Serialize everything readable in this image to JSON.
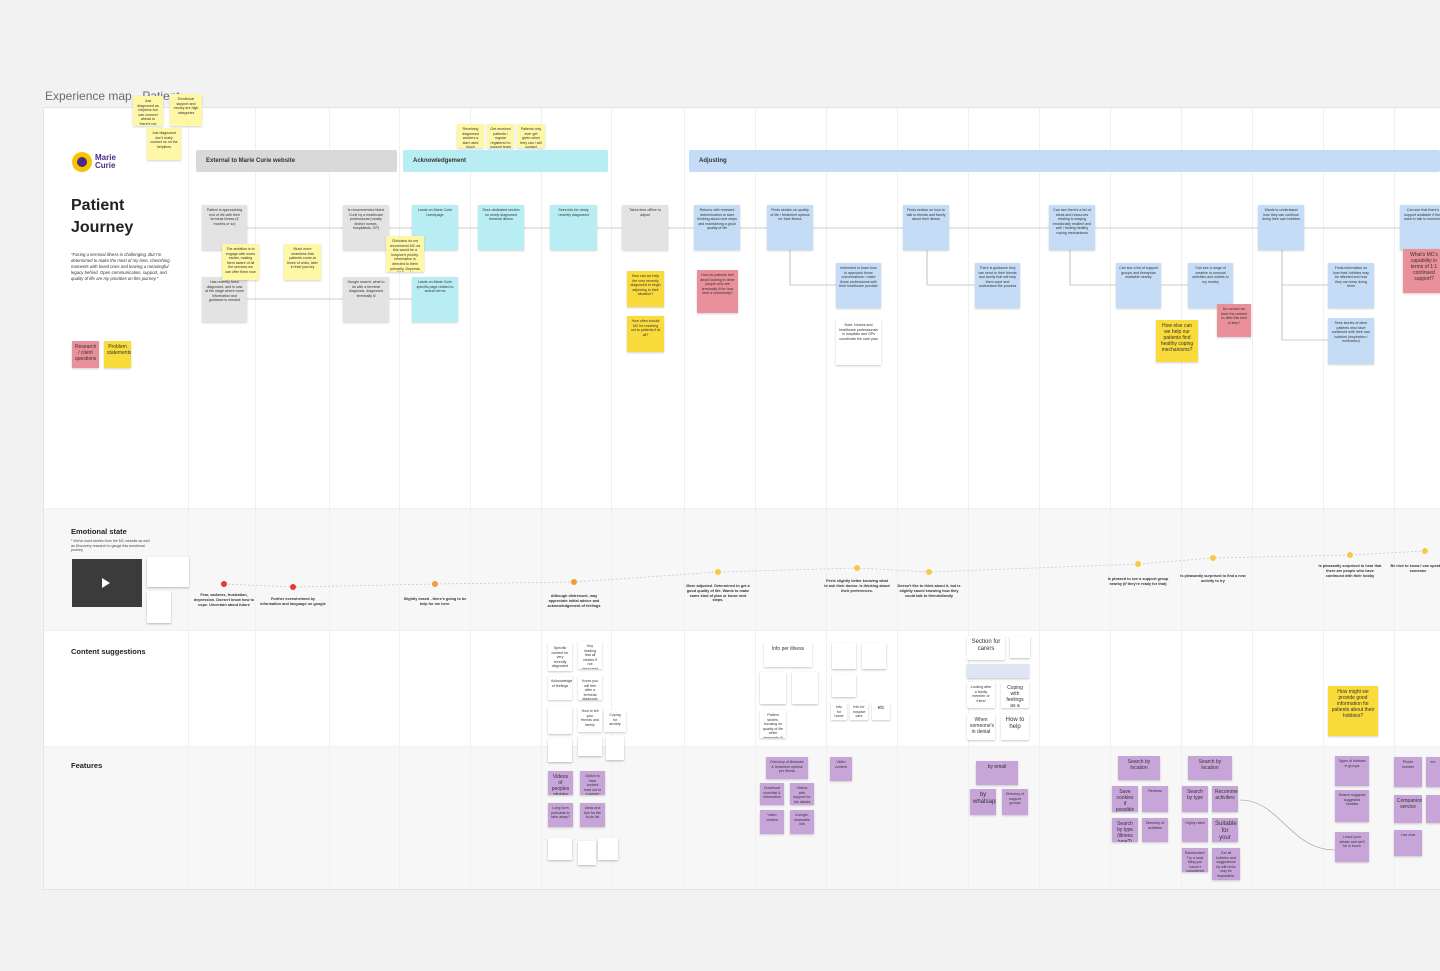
{
  "frame_title": "Experience map - Patient",
  "logo_text": "Marie Curie",
  "journey_title": "Patient Journey",
  "journey_quote": "\"Facing a terminal illness is challenging. But I'm determined to make the most of my time, cherishing moments with loved ones and leaving a meaningful legacy behind. Open communication, support, and quality of life are my priorities on this journey.\"",
  "legend": {
    "research": "Research / client questions",
    "problem": "Problem statements"
  },
  "phases": [
    "External to Marie Curie website",
    "Acknowledgement",
    "Adjusting"
  ],
  "sections": {
    "emotional": "Emotional state",
    "emotional_sub": "* We've used stories from the MC website as well as Discovery research to gauge this emotional journey",
    "content": "Content suggestions",
    "features": "Features"
  },
  "steps": [
    "Patient is approaching end of life with their terminal illness (6 months or so)",
    "Has recently been diagnosed, and is now at the stage where more information and guidance is needed",
    "Is recommended Marie Curie by a healthcare professional (mostly district nurses, hospitalists, GP)",
    "Google search: what to do with a terminal diagnosis, diagnosed terminally ill",
    "Lands on Marie Curie homepage",
    "Lands on Marie Curie specific page related to search terms",
    "Sees dedicated section on newly diagnosed terminal illness",
    "Sees info for newly recently diagnosed",
    "Takes time offline to adjust",
    "Returns with renewed determination to start thinking about next steps and maintaining a good quality of life",
    "Finds section on quality of life / treatment options for their illness",
    "Finds section on how to talk to friends and family about their illness",
    "Can see there's a list of ideas and resources relating to staying emotionally resilient and well / finding healthy coping mechanisms",
    "Wants to understand how they can continue doing their own hobbies",
    "Can see that there's support available if they want to talk to someone"
  ],
  "sub_steps": [
    "Interested to learn how to approach those conversations / make those professional with their healthcare provider",
    "Note: Nurses and healthcare professionals in hospitals and GPs coordinate the care plan",
    "There is guidance they can send to their friends and family that will help them cope and understand the process",
    "Can see a list of support groups and therapists available nearby",
    "Can see a range of creative or unusual activities and outlets in my nearby",
    "Finds information on how their hobbies may be affected and how they can keep doing them",
    "Sees stories of other patients who have continued with their own hobbies (inspiration / motivation)"
  ],
  "ideas": [
    "The ambition is to engage with users earlier, making them aware of all the services we can offer them now",
    "Much more seamless that patients come at times of crisis, later in their journey",
    "Clinicians do not recommend MC as this would be a hospice's priority. Information is directed to them primarily. Depends on GDS and how involved in the messaging",
    "How can we help the very recently diagnosed to begin adjusting to their situation?",
    "How often should MC be reaching out to patients if at all?",
    "How else can we help our patients find healthy coping mechanisms?",
    "How might we provide good information for patients about their hobbies?",
    "Receiving diagnosed workers a start used touch",
    "Get received patients / regular registered to support team",
    "Patients only ever get given when they can / will contact"
  ],
  "top_notes": [
    "Just diagnosed as helpless but can connect ahead to there's not want touch",
    "Emotional support and money are high categories",
    "Just diagnosed don't really contact us on the helplines"
  ],
  "research_notes": [
    "How do patients feel about looking in other people who are terminally ill for how best a community?",
    "What's MC's capability in terms of 1:1 continued support?",
    "Do we/can we have the content to offer this kind of step?"
  ],
  "emotions": [
    "Fear, sadness, frustration, depression. Doesn't know how to cope. Uncertain about future",
    "Further overwhelmed by information and language on google",
    "Slightly eased - there's going to be help for me here.",
    "Although distressed, may appreciate initial advice and acknowledgement of feelings",
    "More adjusted. Determined to get a good quality of life. Wants to make some kind of plan or know next steps.",
    "Feels slightly better knowing what to ask their doctor. Is thinking about their preferences.",
    "Doesn't like to think about it, but is slightly eased knowing how they could talk to friends/family",
    "Is pleased to see a support group nearby (if they're ready for that)",
    "Is pleasantly surprised to find a new activity to try",
    "Is pleasantly surprised to hear that there are people who have continued with their hobby",
    "Be nice to know I can speak to someone"
  ],
  "content_notes": [
    "Specific content for very recently diagnosed",
    "Key reading that all relates if not diagnosed and how they can feel at this time",
    "Acknowledgement of feelings",
    "Know you will feel after a terminal diagnosis",
    "How to tell your friends and family",
    "Coping for anxiety",
    "Info per illness",
    "Patient stories, focusing on quality of life while terminally ill",
    "Info for home care",
    "Info for hospice care",
    "etc",
    "Section for carers",
    "Looking after a family member or friend",
    "Coping with feelings as a carer",
    "When someone's in denial",
    "How to help"
  ],
  "features": [
    "Videos of peoples stories",
    "Option to have content read out to a screen user",
    "Long form podcasts to take away?",
    "Ideas and tips for the to-do list",
    "Directory of illnesses & treatment options per illness",
    "Video content",
    "Download checklist & information",
    "Videos with support for the diaries",
    "Video content",
    "A single, shareable link",
    "by email",
    "by whatsapp",
    "Directory of support groups",
    "Search by location",
    "Save cookies if possible",
    "Reviews",
    "Search by type (illness type?)",
    "Directory of activities",
    "Search by location",
    "Search by type",
    "Recommended activities",
    "Highly rated",
    "Suitable for your illness type",
    "Randomiser! Try a local thing you haven't considered",
    "Get all hobbies and suggestions by with links may be impossible, list them easily",
    "Types of hobbies in groups",
    "Search suggests suggested hobbies",
    "Leave your details and we'll be in touch",
    "Phone number",
    "Companion service",
    "Live chat",
    "em"
  ],
  "colors": {
    "sticky_yellow": "#fdf7a6",
    "idea_yellow": "#f9db3c",
    "step_grey": "#e3e3e3",
    "step_cyan": "#b8eef3",
    "step_blue": "#c4dcf5",
    "research_pink": "#e9909b",
    "feature_purple": "#c7a5d8",
    "emotion_red": "#e53935",
    "emotion_orange": "#f39c33",
    "emotion_yellow": "#f7c948"
  },
  "icons": [
    "play-icon",
    "logo-mark-icon"
  ]
}
